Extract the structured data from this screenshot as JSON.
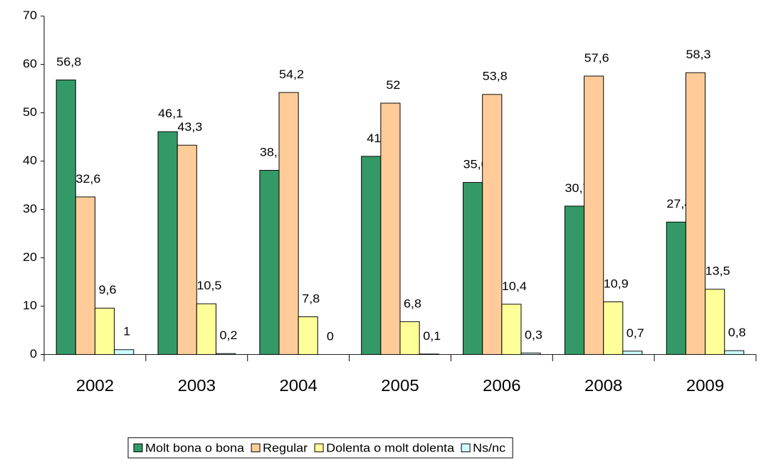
{
  "chart_data": {
    "type": "bar",
    "categories": [
      "2002",
      "2003",
      "2004",
      "2005",
      "2006",
      "2008",
      "2009"
    ],
    "series": [
      {
        "name": "Molt bona o bona",
        "color": "#339966",
        "values": [
          56.8,
          46.1,
          38.1,
          41,
          35.6,
          30.7,
          27.4
        ],
        "value_labels": [
          "56,8",
          "46,1",
          "38,1",
          "41",
          "35,6",
          "30,7",
          "27,4"
        ]
      },
      {
        "name": "Regular",
        "color": "#ffcc99",
        "values": [
          32.6,
          43.3,
          54.2,
          52,
          53.8,
          57.6,
          58.3
        ],
        "value_labels": [
          "32,6",
          "43,3",
          "54,2",
          "52",
          "53,8",
          "57,6",
          "58,3"
        ]
      },
      {
        "name": "Dolenta o molt dolenta",
        "color": "#ffff99",
        "values": [
          9.6,
          10.5,
          7.8,
          6.8,
          10.4,
          10.9,
          13.5
        ],
        "value_labels": [
          "9,6",
          "10,5",
          "7,8",
          "6,8",
          "10,4",
          "10,9",
          "13,5"
        ]
      },
      {
        "name": "Ns/nc",
        "color": "#ccffff",
        "values": [
          1,
          0.2,
          0,
          0.1,
          0.3,
          0.7,
          0.8
        ],
        "value_labels": [
          "1",
          "0,2",
          "0",
          "0,1",
          "0,3",
          "0,7",
          "0,8"
        ]
      }
    ],
    "ylim": [
      0,
      70
    ],
    "yticks": [
      0,
      10,
      20,
      30,
      40,
      50,
      60,
      70
    ],
    "legend": "bottom"
  }
}
